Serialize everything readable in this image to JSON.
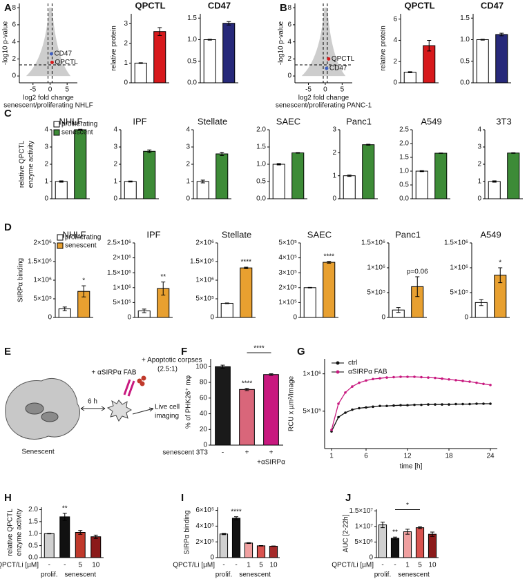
{
  "panel_labels": [
    "A",
    "B",
    "C",
    "D",
    "E",
    "F",
    "G",
    "H",
    "I",
    "J"
  ],
  "diagram": {
    "senescent": "Senescent",
    "duration": "6 h",
    "antibody": "+ αSIRPα FAB",
    "corpses": [
      "+ Apoptotic corpses",
      "(2.5:1)"
    ],
    "imaging": [
      "Live cell",
      "imaging"
    ]
  },
  "chart_data": [
    {
      "type": "scatter",
      "xlabel": [
        "log2 fold change",
        "senescent/proliferating NHLF"
      ],
      "ylabel": "-log10 p-value",
      "xlim": [
        -9,
        8
      ],
      "ylim": [
        -0.8,
        8.5
      ],
      "xticks": [
        -5,
        0,
        5
      ],
      "yticks": [
        0,
        2,
        4,
        6,
        8
      ],
      "x_thresholds": [
        -0.6,
        0.6
      ],
      "y_threshold": 1.3,
      "series": [
        {
          "name": "CD47",
          "color": "#3f5fbf",
          "x": [
            0.4
          ],
          "values": [
            2.6
          ]
        },
        {
          "name": "QPCTL",
          "color": "#d7191c",
          "x": [
            0.6
          ],
          "values": [
            1.6
          ]
        }
      ]
    },
    {
      "type": "bar",
      "title": "QPCTL",
      "ylabel": "relative protein",
      "ylim": [
        0,
        3.5
      ],
      "yticks": [
        0,
        1,
        2,
        3
      ],
      "values": [
        1,
        2.6
      ],
      "errors": [
        0.02,
        0.2
      ],
      "colors": [
        "#ffffff",
        "#d7191c"
      ]
    },
    {
      "type": "bar",
      "title": "CD47",
      "ylim": [
        0,
        1.6
      ],
      "yticks": [
        {
          "value": 0,
          "label": "0.0"
        },
        {
          "value": 0.5,
          "label": "0.5"
        },
        {
          "value": 1,
          "label": "1.0"
        },
        {
          "value": 1.5,
          "label": "1.5"
        }
      ],
      "values": [
        1,
        1.38
      ],
      "errors": [
        0.01,
        0.04
      ],
      "colors": [
        "#ffffff",
        "#27297a"
      ]
    },
    {
      "type": "scatter",
      "xlabel": [
        "log2 fold change",
        "senescent/proliferating PANC-1"
      ],
      "ylabel": "-log10 p-value",
      "xlim": [
        -9,
        8
      ],
      "ylim": [
        -0.8,
        8.5
      ],
      "xticks": [
        -5,
        0,
        5
      ],
      "yticks": [
        0,
        2,
        4,
        6,
        8
      ],
      "x_thresholds": [
        -0.6,
        0.6
      ],
      "y_threshold": 1.3,
      "series": [
        {
          "name": "QPCTL",
          "color": "#d7191c",
          "x": [
            1
          ],
          "values": [
            2
          ]
        },
        {
          "name": "CD47",
          "color": "#3f5fbf",
          "x": [
            0.4
          ],
          "values": [
            0.9
          ]
        }
      ]
    },
    {
      "type": "bar",
      "title": "QPCTL",
      "ylabel": "relative protein",
      "ylim": [
        0,
        6.5
      ],
      "yticks": [
        0,
        2,
        4,
        6
      ],
      "values": [
        1,
        3.5
      ],
      "errors": [
        0.05,
        0.5
      ],
      "colors": [
        "#ffffff",
        "#d7191c"
      ]
    },
    {
      "type": "bar",
      "title": "CD47",
      "ylim": [
        0,
        1.6
      ],
      "yticks": [
        {
          "value": 0,
          "label": "0.0"
        },
        {
          "value": 0.5,
          "label": "0.5"
        },
        {
          "value": 1,
          "label": "1.0"
        },
        {
          "value": 1.5,
          "label": "1.5"
        }
      ],
      "values": [
        1,
        1.12
      ],
      "errors": [
        0.01,
        0.03
      ],
      "colors": [
        "#ffffff",
        "#27297a"
      ]
    },
    {
      "type": "bar",
      "title": "NHLF",
      "ylabel": [
        "relative QPCTL",
        "enzyme activity"
      ],
      "legend": [
        {
          "name": "proliferating",
          "color": "#ffffff"
        },
        {
          "name": "senescent",
          "color": "#3d8b37"
        }
      ],
      "ylim": [
        0,
        4
      ],
      "yticks": [
        0,
        1,
        2,
        3,
        4
      ],
      "values": [
        1,
        4
      ],
      "errors": [
        0.04,
        0.03
      ],
      "colors": [
        "#ffffff",
        "#3d8b37"
      ]
    },
    {
      "type": "bar",
      "title": "IPF",
      "ylim": [
        0,
        4
      ],
      "yticks": [
        0,
        1,
        2,
        3,
        4
      ],
      "values": [
        1,
        2.75
      ],
      "errors": [
        0.03,
        0.08
      ],
      "colors": [
        "#ffffff",
        "#3d8b37"
      ]
    },
    {
      "type": "bar",
      "title": "Stellate",
      "ylim": [
        0,
        4
      ],
      "yticks": [
        0,
        1,
        2,
        3,
        4
      ],
      "values": [
        1,
        2.6
      ],
      "errors": [
        0.08,
        0.1
      ],
      "colors": [
        "#ffffff",
        "#3d8b37"
      ]
    },
    {
      "type": "bar",
      "title": "SAEC",
      "ylim": [
        0,
        2
      ],
      "yticks": [
        {
          "value": 0,
          "label": "0.0"
        },
        {
          "value": 0.5,
          "label": "0.5"
        },
        {
          "value": 1,
          "label": "1.0"
        },
        {
          "value": 1.5,
          "label": "1.5"
        },
        {
          "value": 2,
          "label": "2.0"
        }
      ],
      "values": [
        1,
        1.33
      ],
      "errors": [
        0.02,
        0.01
      ],
      "colors": [
        "#ffffff",
        "#3d8b37"
      ]
    },
    {
      "type": "bar",
      "title": "Panc1",
      "ylim": [
        0,
        3
      ],
      "yticks": [
        0,
        1,
        2,
        3
      ],
      "values": [
        1,
        2.35
      ],
      "errors": [
        0.03,
        0.02
      ],
      "colors": [
        "#ffffff",
        "#3d8b37"
      ]
    },
    {
      "type": "bar",
      "title": "A549",
      "ylim": [
        0,
        2.5
      ],
      "yticks": [
        {
          "value": 0,
          "label": "0.0"
        },
        {
          "value": 0.5,
          "label": "0.5"
        },
        {
          "value": 1,
          "label": "1.0"
        },
        {
          "value": 1.5,
          "label": "1.5"
        },
        {
          "value": 2,
          "label": "2.0"
        },
        {
          "value": 2.5,
          "label": "2.5"
        }
      ],
      "values": [
        1,
        1.65
      ],
      "errors": [
        0.02,
        0.01
      ],
      "colors": [
        "#ffffff",
        "#3d8b37"
      ]
    },
    {
      "type": "bar",
      "title": "3T3",
      "ylim": [
        0,
        4
      ],
      "yticks": [
        0,
        1,
        2,
        3,
        4
      ],
      "values": [
        1,
        2.65
      ],
      "errors": [
        0.04,
        0.02
      ],
      "colors": [
        "#ffffff",
        "#3d8b37"
      ]
    },
    {
      "type": "bar",
      "title": "NHLF",
      "ylabel": "SIRPα binding",
      "legend": [
        {
          "name": "proliferating",
          "color": "#ffffff"
        },
        {
          "name": "senescent",
          "color": "#e8a030"
        }
      ],
      "ylim": [
        0,
        2000000
      ],
      "yticks": [
        0,
        {
          "value": 500000,
          "label": "5×10⁵"
        },
        {
          "value": 1000000,
          "label": "1×10⁶"
        },
        {
          "value": 1500000,
          "label": "1.5×10⁶"
        },
        {
          "value": 2000000,
          "label": "2×10⁶"
        }
      ],
      "values": [
        230000,
        700000
      ],
      "errors": [
        50000,
        150000
      ],
      "colors": [
        "#ffffff",
        "#e8a030"
      ],
      "significance": [
        null,
        "*"
      ]
    },
    {
      "type": "bar",
      "title": "IPF",
      "ylim": [
        0,
        2500000
      ],
      "yticks": [
        0,
        {
          "value": 500000,
          "label": "5×10⁵"
        },
        {
          "value": 1000000,
          "label": "1×10⁶"
        },
        {
          "value": 1500000,
          "label": "1.5×10⁶"
        },
        {
          "value": 2000000,
          "label": "2×10⁶"
        },
        {
          "value": 2500000,
          "label": "2.5×10⁶"
        }
      ],
      "values": [
        220000,
        970000
      ],
      "errors": [
        60000,
        220000
      ],
      "colors": [
        "#ffffff",
        "#e8a030"
      ],
      "significance": [
        null,
        "**"
      ]
    },
    {
      "type": "bar",
      "title": "Stellate",
      "ylim": [
        0,
        2000000
      ],
      "yticks": [
        0,
        {
          "value": 500000,
          "label": "5×10⁵"
        },
        {
          "value": 1000000,
          "label": "1×10⁶"
        },
        {
          "value": 1500000,
          "label": "1.5×10⁶"
        },
        {
          "value": 2000000,
          "label": "2×10⁶"
        }
      ],
      "values": [
        380000,
        1330000
      ],
      "errors": [
        10000,
        20000
      ],
      "colors": [
        "#ffffff",
        "#e8a030"
      ],
      "significance": [
        null,
        "****"
      ]
    },
    {
      "type": "bar",
      "title": "SAEC",
      "ylim": [
        0,
        500000
      ],
      "yticks": [
        0,
        {
          "value": 100000,
          "label": "1×10⁵"
        },
        {
          "value": 200000,
          "label": "2×10⁵"
        },
        {
          "value": 300000,
          "label": "3×10⁵"
        },
        {
          "value": 400000,
          "label": "4×10⁵"
        },
        {
          "value": 500000,
          "label": "5×10⁵"
        }
      ],
      "values": [
        200000,
        370000
      ],
      "errors": [
        2000,
        6000
      ],
      "colors": [
        "#ffffff",
        "#e8a030"
      ],
      "significance": [
        null,
        "****"
      ]
    },
    {
      "type": "bar",
      "title": "Panc1",
      "ylim": [
        0,
        1500000
      ],
      "yticks": [
        0,
        {
          "value": 500000,
          "label": "5×10⁵"
        },
        {
          "value": 1000000,
          "label": "1×10⁶"
        },
        {
          "value": 1500000,
          "label": "1.5×10⁶"
        }
      ],
      "values": [
        150000,
        620000
      ],
      "errors": [
        50000,
        200000
      ],
      "colors": [
        "#ffffff",
        "#e8a030"
      ],
      "significance": [
        null,
        "p=0.06"
      ]
    },
    {
      "type": "bar",
      "title": "A549",
      "ylim": [
        0,
        1500000
      ],
      "yticks": [
        0,
        {
          "value": 500000,
          "label": "5×10⁵"
        },
        {
          "value": 1000000,
          "label": "1×10⁶"
        },
        {
          "value": 1500000,
          "label": "1.5×10⁶"
        }
      ],
      "values": [
        300000,
        850000
      ],
      "errors": [
        60000,
        150000
      ],
      "colors": [
        "#ffffff",
        "#e8a030"
      ],
      "significance": [
        null,
        "*"
      ]
    },
    {
      "type": "bar",
      "ylabel": "% of PHK26⁺ mφ",
      "ylim": [
        0,
        110
      ],
      "yticks": [
        0,
        20,
        40,
        60,
        80,
        100
      ],
      "categories": [
        "-",
        "+",
        "+"
      ],
      "x_title": "senescent 3T3",
      "treatment_label": "+αSIRPα",
      "values": [
        100,
        71,
        90
      ],
      "errors": [
        2,
        1.5,
        1
      ],
      "colors": [
        "#1a1a1a",
        "#d9667a",
        "#c8197f"
      ],
      "significance": [
        null,
        "****",
        null
      ],
      "bracket_label": "****"
    },
    {
      "type": "line",
      "ylabel": "RCU x µm²/Image",
      "xlabel": "time [h]",
      "xlim": [
        0,
        25
      ],
      "ylim": [
        0,
        1200000
      ],
      "xticks": [
        1,
        6,
        12,
        18,
        24
      ],
      "yticks": [
        {
          "value": 500000,
          "label": "5×10⁵"
        },
        {
          "value": 1000000,
          "label": "1×10⁶"
        }
      ],
      "x": [
        1,
        2,
        3,
        4,
        5,
        6,
        7,
        8,
        9,
        10,
        11,
        12,
        13,
        14,
        15,
        16,
        17,
        18,
        19,
        20,
        21,
        22,
        23,
        24
      ],
      "series": [
        {
          "name": "ctrl",
          "color": "#111111",
          "values": [
            230000,
            420000,
            480000,
            520000,
            540000,
            550000,
            560000,
            570000,
            570000,
            575000,
            580000,
            580000,
            585000,
            585000,
            590000,
            590000,
            590000,
            590000,
            595000,
            595000,
            595000,
            600000,
            600000,
            600000
          ]
        },
        {
          "name": "αSIRPα FAB",
          "color": "#c8197f",
          "values": [
            250000,
            600000,
            750000,
            830000,
            880000,
            910000,
            930000,
            940000,
            950000,
            955000,
            960000,
            960000,
            960000,
            955000,
            950000,
            945000,
            935000,
            925000,
            915000,
            905000,
            895000,
            880000,
            865000,
            850000
          ]
        }
      ]
    },
    {
      "type": "bar",
      "ylabel": [
        "relative QPCTL",
        "enzyme activity"
      ],
      "ylim": [
        0,
        2.1
      ],
      "yticks": [
        {
          "value": 0,
          "label": "0.0"
        },
        {
          "value": 0.5,
          "label": "0.5"
        },
        {
          "value": 1,
          "label": "1.0"
        },
        {
          "value": 1.5,
          "label": "1.5"
        },
        {
          "value": 2,
          "label": "2.0"
        }
      ],
      "categories": [
        "-",
        "-",
        "5",
        "10"
      ],
      "x_title": "QPCT/Li [µM]",
      "groups": [
        "prolif.",
        "senescent"
      ],
      "values": [
        1,
        1.7,
        1.05,
        0.87
      ],
      "errors": [
        0.01,
        0.15,
        0.08,
        0.07
      ],
      "colors": [
        "#d0d0d0",
        "#111111",
        "#c0392b",
        "#8b1a1a"
      ],
      "significance": [
        null,
        "**",
        null,
        null
      ]
    },
    {
      "type": "bar",
      "ylabel": "SIRPα binding",
      "ylim": [
        0,
        640000
      ],
      "yticks": [
        0,
        {
          "value": 200000,
          "label": "2×10⁵"
        },
        {
          "value": 400000,
          "label": "4×10⁵"
        },
        {
          "value": 600000,
          "label": "6×10⁵"
        }
      ],
      "categories": [
        "-",
        "-",
        "1",
        "5",
        "10"
      ],
      "x_title": "QPCT/Li [µM]",
      "groups": [
        "prolif.",
        "senescent"
      ],
      "values": [
        300000,
        500000,
        185000,
        150000,
        145000
      ],
      "errors": [
        8000,
        20000,
        5000,
        3000,
        3000
      ],
      "colors": [
        "#d0d0d0",
        "#111111",
        "#f0a0a0",
        "#d9534f",
        "#a52a2a"
      ],
      "significance": [
        null,
        "****",
        null,
        null,
        null
      ]
    },
    {
      "type": "bar",
      "ylabel": "AUC [2-22h]",
      "ylim": [
        0,
        15500000
      ],
      "yticks": [
        0,
        {
          "value": 5000000,
          "label": "5×10⁶"
        },
        {
          "value": 10000000,
          "label": "1×10⁷"
        },
        {
          "value": 15000000,
          "label": "1.5×10⁷"
        }
      ],
      "categories": [
        "-",
        "-",
        "1",
        "5",
        "10"
      ],
      "x_title": "QPCT/Li [µM]",
      "groups": [
        "prolif.",
        "senescent"
      ],
      "values": [
        10500000,
        6200000,
        8300000,
        9600000,
        7500000
      ],
      "errors": [
        900000,
        400000,
        800000,
        300000,
        700000
      ],
      "colors": [
        "#d0d0d0",
        "#111111",
        "#f0a0a0",
        "#d9534f",
        "#8b1a1a"
      ],
      "significance": [
        null,
        "**",
        null,
        null,
        null
      ],
      "bracket_label": "*"
    }
  ]
}
